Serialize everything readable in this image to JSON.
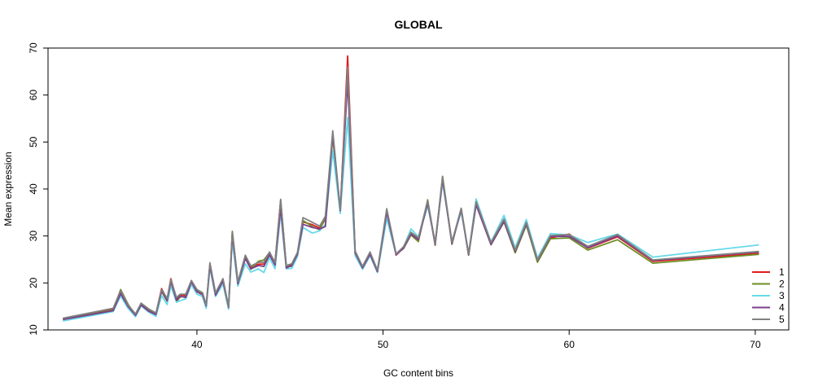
{
  "chart_data": {
    "type": "line",
    "title": "GLOBAL",
    "xlabel": "GC content bins",
    "ylabel": "Mean expression",
    "xlim": [
      32,
      71.8
    ],
    "ylim": [
      10,
      70
    ],
    "xticks": [
      40,
      50,
      60,
      70
    ],
    "yticks": [
      10,
      20,
      30,
      40,
      50,
      60,
      70
    ],
    "grid": false,
    "legend_position": "bottom-right",
    "x": [
      32.8,
      35.5,
      35.9,
      36.3,
      36.7,
      37.0,
      37.4,
      37.8,
      38.1,
      38.4,
      38.6,
      38.9,
      39.1,
      39.4,
      39.7,
      40.0,
      40.3,
      40.5,
      40.7,
      41.0,
      41.4,
      41.7,
      41.9,
      42.2,
      42.6,
      42.9,
      43.3,
      43.6,
      43.9,
      44.2,
      44.5,
      44.8,
      45.1,
      45.4,
      45.7,
      46.2,
      46.6,
      46.9,
      47.3,
      47.7,
      48.1,
      48.5,
      48.9,
      49.3,
      49.7,
      50.2,
      50.7,
      51.1,
      51.5,
      51.9,
      52.4,
      52.8,
      53.2,
      53.7,
      54.2,
      54.6,
      55.0,
      55.8,
      56.5,
      57.1,
      57.7,
      58.3,
      59.0,
      60.0,
      61.0,
      62.6,
      64.5,
      70.2
    ],
    "series": [
      {
        "name": "1",
        "color": "#e31a1c",
        "values": [
          12.4,
          14.4,
          18.0,
          15.2,
          13.3,
          15.5,
          14.3,
          13.5,
          18.8,
          16.5,
          20.9,
          16.6,
          17.5,
          17.3,
          20.5,
          18.3,
          17.7,
          15.0,
          24.0,
          17.6,
          20.6,
          14.6,
          30.7,
          20.0,
          25.7,
          23.3,
          24.0,
          24.0,
          26.2,
          24.5,
          37.5,
          23.3,
          23.9,
          26.3,
          33.0,
          32.4,
          31.7,
          33.5,
          51.5,
          35.3,
          68.3,
          26.5,
          23.3,
          26.3,
          22.5,
          35.4,
          25.9,
          27.5,
          30.5,
          29.3,
          37.3,
          28.3,
          42.3,
          28.5,
          35.5,
          26.0,
          37.0,
          28.4,
          33.4,
          26.8,
          32.5,
          24.6,
          29.6,
          30.4,
          27.4,
          29.8,
          24.6,
          26.3
        ]
      },
      {
        "name": "2",
        "color": "#6b8e23",
        "values": [
          12.3,
          14.2,
          18.6,
          15.5,
          13.0,
          15.6,
          14.4,
          13.2,
          18.2,
          16.1,
          20.6,
          16.0,
          17.0,
          17.1,
          20.4,
          18.3,
          17.9,
          15.2,
          23.6,
          17.3,
          20.8,
          14.9,
          31.0,
          20.3,
          25.3,
          22.9,
          24.6,
          24.9,
          26.5,
          24.0,
          37.6,
          23.6,
          23.5,
          26.0,
          33.3,
          32.0,
          31.3,
          33.9,
          50.9,
          35.0,
          64.5,
          26.3,
          23.5,
          26.4,
          22.4,
          35.4,
          26.1,
          27.3,
          30.2,
          28.8,
          37.7,
          28.0,
          42.7,
          28.2,
          35.8,
          25.9,
          36.8,
          28.1,
          33.0,
          26.4,
          32.3,
          24.4,
          29.4,
          29.6,
          27.0,
          29.2,
          24.2,
          26.1
        ]
      },
      {
        "name": "3",
        "color": "#66d9e8",
        "values": [
          11.9,
          13.9,
          17.2,
          14.6,
          12.8,
          15.1,
          13.8,
          12.9,
          17.3,
          15.4,
          19.4,
          15.9,
          16.2,
          16.6,
          19.6,
          17.6,
          17.1,
          14.6,
          23.2,
          17.1,
          19.8,
          14.4,
          29.1,
          19.3,
          24.1,
          22.3,
          23.0,
          22.2,
          25.4,
          23.0,
          35.0,
          23.0,
          23.1,
          25.6,
          31.8,
          30.6,
          31.1,
          32.5,
          48.1,
          34.8,
          55.2,
          25.8,
          22.9,
          25.8,
          22.2,
          33.7,
          26.0,
          27.6,
          31.5,
          29.8,
          36.4,
          28.7,
          41.4,
          28.9,
          35.1,
          26.3,
          37.9,
          28.7,
          34.4,
          27.5,
          33.5,
          25.3,
          30.5,
          30.2,
          28.6,
          30.4,
          25.5,
          28.1
        ]
      },
      {
        "name": "4",
        "color": "#7b3f8c",
        "values": [
          12.2,
          14.1,
          17.7,
          15.0,
          13.1,
          15.3,
          14.0,
          13.3,
          18.3,
          16.2,
          20.3,
          16.3,
          17.2,
          16.9,
          20.2,
          18.1,
          17.5,
          15.1,
          23.7,
          17.4,
          20.4,
          14.8,
          30.2,
          19.8,
          25.2,
          23.0,
          23.7,
          23.5,
          26.0,
          23.8,
          36.0,
          23.2,
          23.7,
          26.1,
          32.5,
          31.8,
          31.5,
          32.0,
          51.6,
          35.4,
          63.0,
          26.4,
          23.2,
          26.1,
          22.4,
          35.0,
          26.0,
          27.4,
          30.4,
          29.2,
          37.0,
          28.2,
          42.0,
          28.4,
          35.6,
          26.0,
          36.6,
          28.2,
          33.1,
          26.7,
          32.6,
          24.8,
          29.9,
          29.9,
          27.5,
          30.0,
          24.8,
          26.6
        ]
      },
      {
        "name": "5",
        "color": "#808080",
        "values": [
          12.5,
          14.6,
          18.4,
          15.3,
          13.4,
          15.7,
          14.5,
          13.6,
          18.6,
          16.7,
          20.7,
          16.9,
          17.6,
          17.6,
          20.5,
          18.6,
          17.9,
          15.3,
          24.3,
          17.9,
          20.9,
          14.9,
          30.9,
          20.2,
          25.9,
          23.6,
          24.4,
          24.4,
          26.6,
          24.3,
          37.8,
          23.7,
          24.1,
          26.5,
          33.9,
          32.9,
          32.1,
          34.2,
          52.4,
          35.6,
          66.0,
          26.8,
          23.5,
          26.6,
          22.7,
          35.8,
          26.2,
          27.7,
          30.8,
          29.6,
          37.5,
          28.5,
          42.6,
          28.7,
          35.9,
          26.2,
          37.3,
          28.6,
          33.6,
          27.0,
          32.9,
          24.9,
          30.1,
          30.3,
          27.8,
          30.3,
          24.9,
          26.7
        ]
      }
    ]
  }
}
